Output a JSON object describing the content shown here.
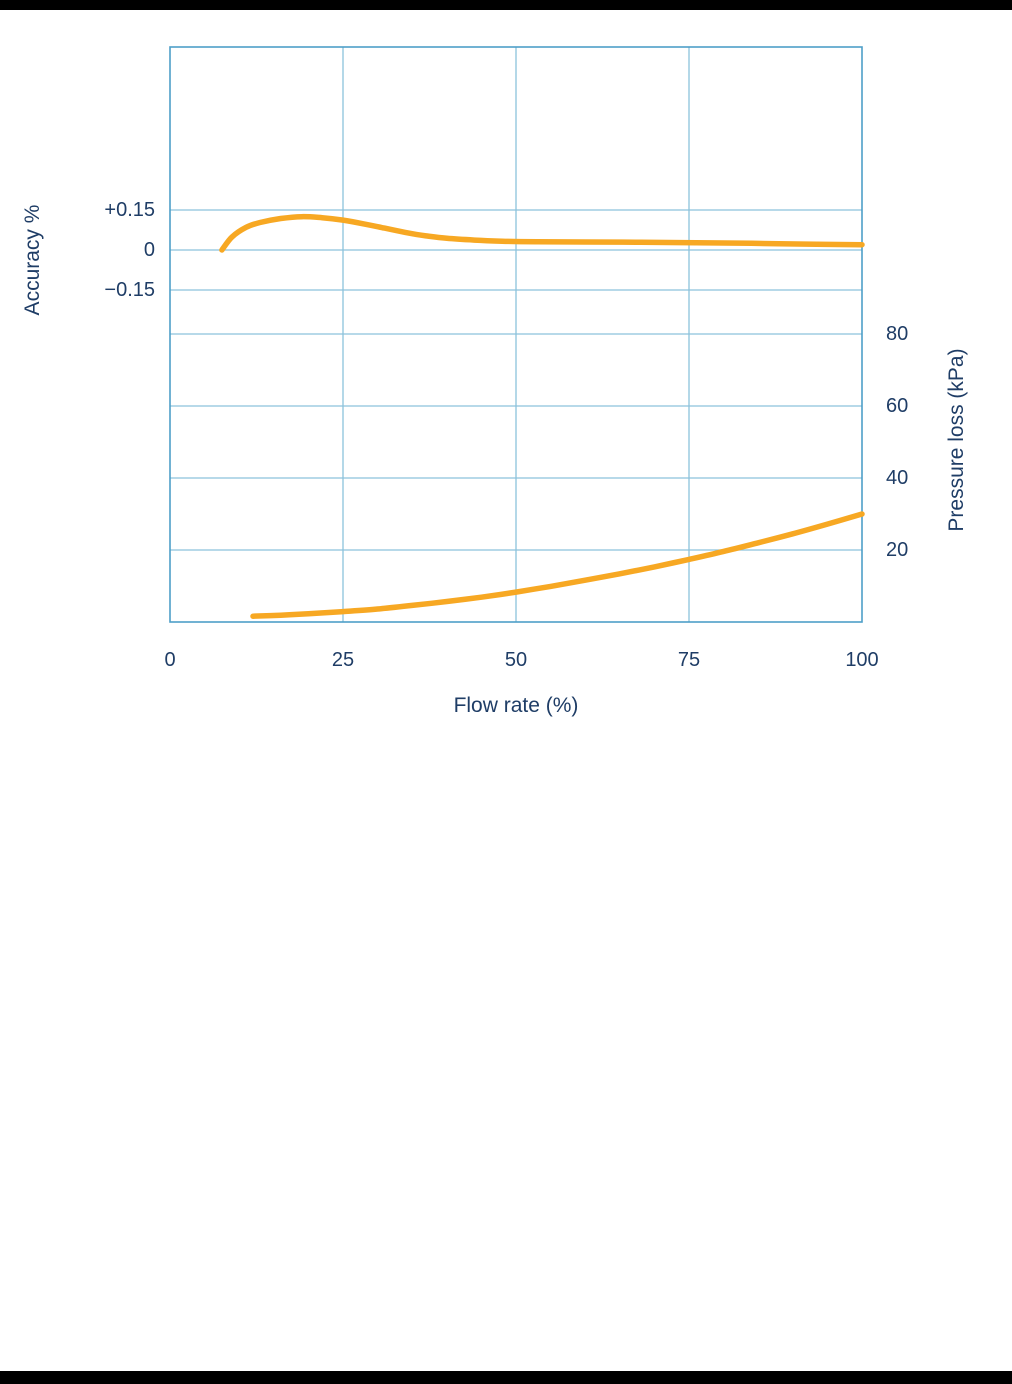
{
  "page": {
    "background": "#ffffff",
    "edge_border_color": "#000000"
  },
  "chart_data": {
    "type": "line",
    "title": "",
    "xlabel": "Flow rate (%)",
    "grid": true,
    "legend": "none",
    "colors": {
      "line": "#F7A823",
      "grid": "#8CC2DC",
      "border": "#4E9FC8",
      "text": "#1F3D66"
    },
    "x_axis": {
      "range": [
        0,
        100
      ],
      "ticks": [
        {
          "label": "0",
          "value": 0
        },
        {
          "label": "25",
          "value": 25
        },
        {
          "label": "50",
          "value": 50
        },
        {
          "label": "75",
          "value": 75
        },
        {
          "label": "100",
          "value": 100
        }
      ]
    },
    "left_axis": {
      "title": "Accuracy %",
      "ticks": [
        {
          "label": "+0.15",
          "value": 0.15
        },
        {
          "label": "0",
          "value": 0
        },
        {
          "label": "−0.15",
          "value": -0.15
        }
      ]
    },
    "right_axis": {
      "title": "Pressure loss (kPa)",
      "range": [
        0,
        160
      ],
      "ticks": [
        {
          "label": "80",
          "value": 80
        },
        {
          "label": "60",
          "value": 60
        },
        {
          "label": "40",
          "value": 40
        },
        {
          "label": "20",
          "value": 20
        }
      ]
    },
    "series": [
      {
        "name": "Accuracy",
        "axis": "left",
        "points": [
          [
            7.5,
            0
          ],
          [
            9,
            0.05
          ],
          [
            11,
            0.085
          ],
          [
            13,
            0.103
          ],
          [
            16,
            0.118
          ],
          [
            19,
            0.125
          ],
          [
            22,
            0.121
          ],
          [
            25,
            0.112
          ],
          [
            28,
            0.098
          ],
          [
            31,
            0.082
          ],
          [
            34,
            0.066
          ],
          [
            37,
            0.053
          ],
          [
            40,
            0.044
          ],
          [
            44,
            0.037
          ],
          [
            48,
            0.033
          ],
          [
            53,
            0.031
          ],
          [
            60,
            0.03
          ],
          [
            68,
            0.029
          ],
          [
            76,
            0.027
          ],
          [
            84,
            0.025
          ],
          [
            92,
            0.022
          ],
          [
            100,
            0.02
          ]
        ]
      },
      {
        "name": "Pressure loss",
        "axis": "right",
        "points": [
          [
            12,
            1.6
          ],
          [
            16,
            1.9
          ],
          [
            20,
            2.3
          ],
          [
            25,
            2.9
          ],
          [
            30,
            3.6
          ],
          [
            35,
            4.6
          ],
          [
            40,
            5.7
          ],
          [
            45,
            6.9
          ],
          [
            50,
            8.3
          ],
          [
            55,
            9.9
          ],
          [
            60,
            11.6
          ],
          [
            65,
            13.4
          ],
          [
            70,
            15.3
          ],
          [
            75,
            17.4
          ],
          [
            80,
            19.6
          ],
          [
            85,
            22.0
          ],
          [
            90,
            24.5
          ],
          [
            95,
            27.2
          ],
          [
            100,
            30.0
          ]
        ]
      }
    ]
  }
}
